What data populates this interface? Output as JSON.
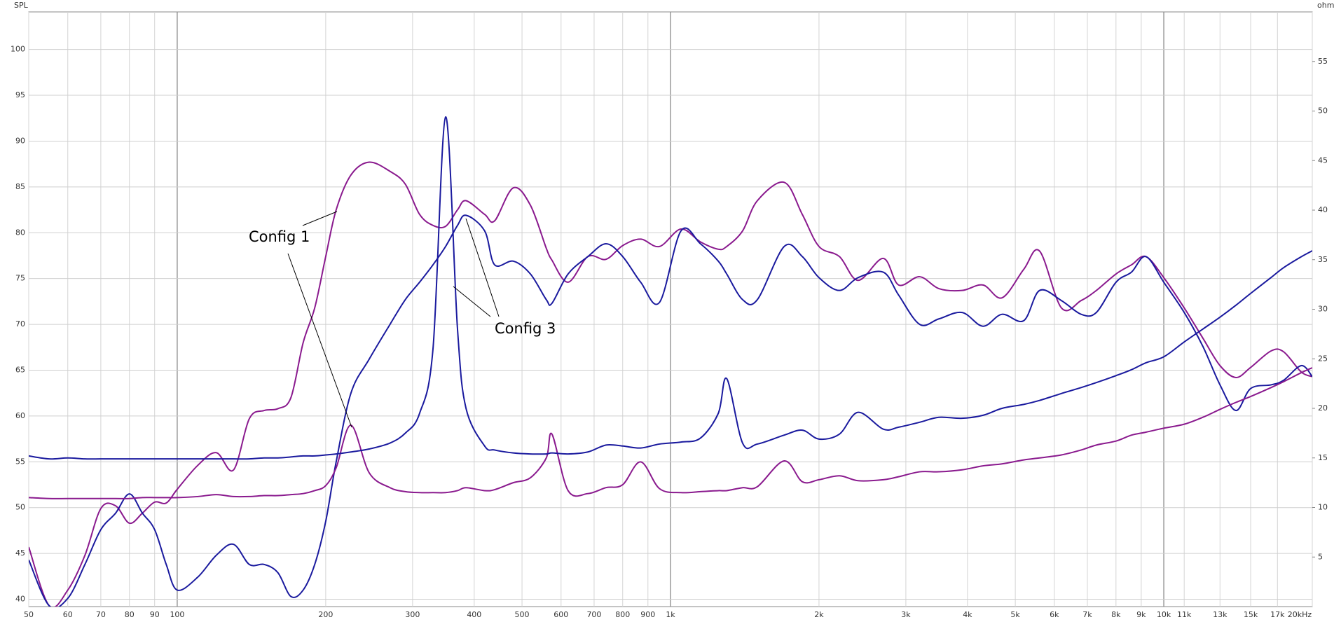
{
  "chart_data": {
    "type": "line",
    "xscale": "log",
    "ylabel": "SPL",
    "y2label": "ohm",
    "grid": true,
    "xlim": [
      50,
      20000
    ],
    "ylim": [
      39.2,
      104.1
    ],
    "y2lim": [
      0,
      60
    ],
    "xticks": [
      50,
      60,
      70,
      80,
      90,
      100,
      200,
      300,
      400,
      500,
      600,
      700,
      800,
      900,
      {
        "value": 1000,
        "label": "1k"
      },
      {
        "value": 2000,
        "label": "2k"
      },
      {
        "value": 3000,
        "label": "3k"
      },
      {
        "value": 4000,
        "label": "4k"
      },
      {
        "value": 5000,
        "label": "5k"
      },
      {
        "value": 6000,
        "label": "6k"
      },
      {
        "value": 7000,
        "label": "7k"
      },
      {
        "value": 8000,
        "label": "8k"
      },
      {
        "value": 9000,
        "label": "9k"
      },
      {
        "value": 10000,
        "label": "10k"
      },
      {
        "value": 11000,
        "label": "11k"
      },
      {
        "value": 13000,
        "label": "13k"
      },
      {
        "value": 15000,
        "label": "15k"
      },
      {
        "value": 17000,
        "label": "17k"
      },
      {
        "value": 20000,
        "label": "20kHz"
      }
    ],
    "yticks": [
      40,
      45,
      50,
      55,
      60,
      65,
      70,
      75,
      80,
      85,
      90,
      95,
      100
    ],
    "y2ticks": [
      5,
      10,
      15,
      20,
      25,
      30,
      35,
      40,
      45,
      50,
      55
    ],
    "annotations": [
      {
        "text": "Config 1"
      },
      {
        "text": "Config 3"
      }
    ],
    "x": [
      50,
      55,
      60,
      65,
      70,
      75,
      80,
      85,
      90,
      95,
      100,
      110,
      120,
      130,
      140,
      150,
      160,
      170,
      180,
      190,
      200,
      210,
      225,
      245,
      270,
      290,
      310,
      330,
      350,
      370,
      385,
      420,
      440,
      480,
      520,
      560,
      575,
      620,
      680,
      740,
      800,
      870,
      950,
      1050,
      1150,
      1250,
      1300,
      1400,
      1500,
      1700,
      1850,
      2000,
      2200,
      2400,
      2700,
      2900,
      3200,
      3500,
      3900,
      4300,
      4700,
      5200,
      5600,
      6200,
      6800,
      7300,
      8000,
      8600,
      9200,
      10000,
      11000,
      12000,
      13000,
      14000,
      15000,
      16500,
      17500,
      19000,
      20000
    ],
    "series": [
      {
        "color": "#8a1a8e",
        "axis": "y",
        "values": [
          45.7,
          39.3,
          41,
          44.8,
          49.9,
          50.2,
          48.3,
          49.4,
          50.6,
          50.5,
          52,
          54.6,
          56,
          54.1,
          59.7,
          60.6,
          60.8,
          62,
          68,
          71.8,
          77.4,
          82.5,
          86.3,
          87.7,
          86.7,
          85.3,
          82,
          80.8,
          80.7,
          82.5,
          83.5,
          82,
          81.3,
          84.9,
          83,
          78.3,
          77,
          74.6,
          77.4,
          77.1,
          78.6,
          79.3,
          78.5,
          80.4,
          79,
          78.2,
          78.5,
          80.2,
          83.5,
          85.5,
          82,
          78.5,
          77.4,
          74.8,
          77.2,
          74.3,
          75.2,
          73.9,
          73.7,
          74.3,
          72.9,
          76,
          78,
          71.8,
          72.6,
          73.7,
          75.5,
          76.5,
          77.4,
          75.1,
          71.8,
          68.5,
          65.5,
          64.2,
          65.3,
          67.1,
          67,
          64.8,
          64.3
        ]
      },
      {
        "color": "#1a1a9e",
        "axis": "y",
        "values": [
          44.3,
          39.3,
          40.1,
          43.8,
          47.6,
          49.4,
          51.5,
          49.4,
          47.6,
          43.8,
          41,
          42.4,
          44.8,
          46,
          43.8,
          43.8,
          42.9,
          40.3,
          41,
          43.8,
          48.5,
          55,
          62.5,
          66.2,
          70,
          72.7,
          74.6,
          76.5,
          78.5,
          80.8,
          81.9,
          80.2,
          76.5,
          76.9,
          75.5,
          72.7,
          72.3,
          75.5,
          77.4,
          78.8,
          77.4,
          74.6,
          72.4,
          80.2,
          78.8,
          76.9,
          75.5,
          72.7,
          72.7,
          78.5,
          77.4,
          75.1,
          73.7,
          75.1,
          75.7,
          73.2,
          70,
          70.6,
          71.3,
          69.8,
          71.1,
          70.4,
          73.7,
          72.6,
          71.1,
          71.3,
          74.6,
          75.7,
          77.4,
          74.6,
          71.3,
          67.6,
          63.4,
          60.6,
          63,
          63.4,
          63.9,
          65.5,
          64.3
        ]
      },
      {
        "color": "#8a1a8e",
        "axis": "y2",
        "values": [
          11,
          10.9,
          10.9,
          10.9,
          10.9,
          10.9,
          10.9,
          11,
          11,
          11,
          11,
          11.1,
          11.3,
          11.1,
          11.1,
          11.2,
          11.2,
          11.3,
          11.4,
          11.7,
          12.2,
          14,
          18.3,
          13.5,
          12,
          11.6,
          11.5,
          11.5,
          11.5,
          11.7,
          12,
          11.7,
          11.8,
          12.5,
          13,
          15,
          17.4,
          11.7,
          11.4,
          12,
          12.3,
          14.6,
          11.9,
          11.5,
          11.6,
          11.7,
          11.7,
          12,
          12.1,
          14.7,
          12.6,
          12.8,
          13.2,
          12.7,
          12.8,
          13.1,
          13.6,
          13.6,
          13.8,
          14.2,
          14.4,
          14.8,
          15,
          15.3,
          15.8,
          16.3,
          16.7,
          17.3,
          17.6,
          18,
          18.4,
          19.1,
          19.9,
          20.6,
          21.2,
          22.1,
          22.7,
          23.6,
          24.1
        ]
      },
      {
        "color": "#1a1a9e",
        "axis": "y2",
        "values": [
          15.2,
          14.9,
          15,
          14.9,
          14.9,
          14.9,
          14.9,
          14.9,
          14.9,
          14.9,
          14.9,
          14.9,
          14.9,
          14.9,
          14.9,
          15,
          15,
          15.1,
          15.2,
          15.2,
          15.3,
          15.4,
          15.6,
          15.9,
          16.5,
          17.5,
          19.5,
          26,
          49.4,
          28,
          20,
          16.2,
          15.8,
          15.5,
          15.4,
          15.4,
          15.5,
          15.4,
          15.6,
          16.3,
          16.2,
          16,
          16.4,
          16.6,
          17,
          19.5,
          23,
          16.5,
          16.4,
          17.3,
          17.8,
          16.9,
          17.4,
          19.6,
          17.9,
          18.1,
          18.6,
          19.1,
          19,
          19.3,
          20,
          20.4,
          20.8,
          21.5,
          22.1,
          22.6,
          23.3,
          23.9,
          24.6,
          25.2,
          26.7,
          28,
          29.2,
          30.4,
          31.6,
          33.2,
          34.2,
          35.3,
          35.9
        ]
      }
    ]
  }
}
